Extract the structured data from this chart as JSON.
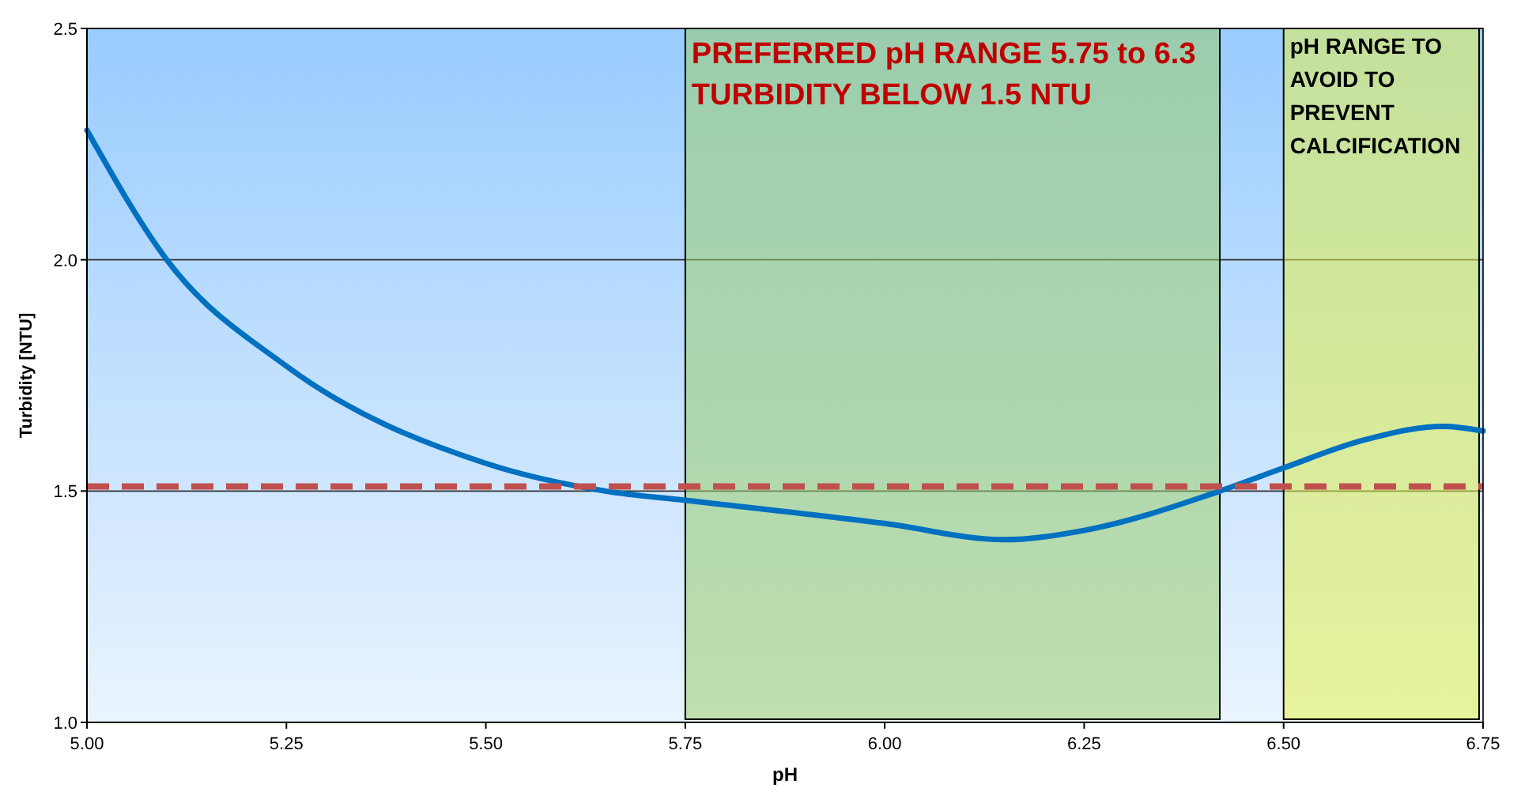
{
  "chart_data": {
    "type": "line",
    "xlabel": "pH",
    "ylabel": "Turbidity [NTU]",
    "x": [
      5.0,
      5.1,
      5.25,
      5.5,
      5.65,
      5.75,
      6.0,
      6.15,
      6.25,
      6.42,
      6.5,
      6.6,
      6.7,
      6.75
    ],
    "series": [
      {
        "color": "#0070c0",
        "values": [
          2.28,
          2.0,
          1.77,
          1.56,
          1.5,
          1.48,
          1.43,
          1.395,
          1.415,
          1.5,
          1.55,
          1.61,
          1.64,
          1.63
        ]
      }
    ],
    "xlim": [
      5.0,
      6.75
    ],
    "ylim": [
      1.0,
      2.5
    ],
    "xticks": [
      {
        "value": 5.0,
        "label": "5.00"
      },
      {
        "value": 5.25,
        "label": "5.25"
      },
      {
        "value": 5.5,
        "label": "5.50"
      },
      {
        "value": 5.75,
        "label": "5.75"
      },
      {
        "value": 6.0,
        "label": "6.00"
      },
      {
        "value": 6.25,
        "label": "6.25"
      },
      {
        "value": 6.5,
        "label": "6.50"
      },
      {
        "value": 6.75,
        "label": "6.75"
      }
    ],
    "yticks": [
      {
        "value": 1.0,
        "label": "1.0"
      },
      {
        "value": 1.5,
        "label": "1.5"
      },
      {
        "value": 2.0,
        "label": "2.0"
      },
      {
        "value": 2.5,
        "label": "2.5"
      }
    ],
    "grid": "y",
    "marker": "none",
    "line_style": "solid",
    "ref_lines": [
      {
        "axis": "y",
        "value": 1.51,
        "color": "#c0504d",
        "line_style": "dashed"
      }
    ],
    "bands": [
      {
        "axis": "x",
        "from": 5.75,
        "to": 6.42,
        "color": "#9acd6b",
        "label": "PREFERRED pH RANGE 5.75 to 6.3\nTURBIDITY BELOW 1.5 NTU"
      },
      {
        "axis": "x",
        "from": 6.5,
        "to": 6.745,
        "color": "#e6f04a",
        "label": "pH RANGE TO\nAVOID TO\nPREVENT\nCALCIFICATION"
      }
    ]
  }
}
